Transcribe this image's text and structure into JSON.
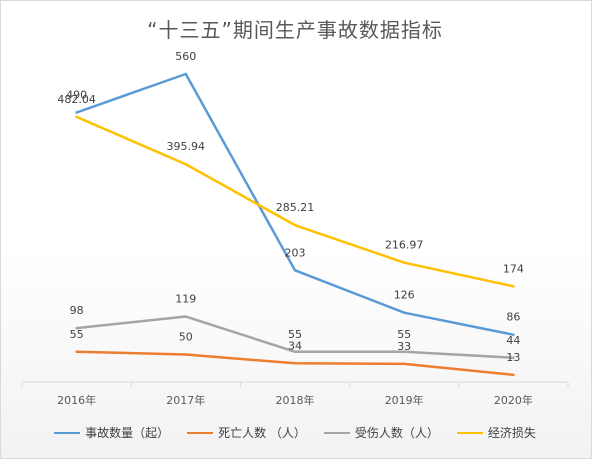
{
  "chart_data": {
    "type": "line",
    "title": "“十三五”期间生产事故数据指标",
    "categories": [
      "2016年",
      "2017年",
      "2018年",
      "2019年",
      "2020年"
    ],
    "ylim": [
      0,
      600
    ],
    "grid": false,
    "legend_position": "bottom",
    "series": [
      {
        "name": "事故数量（起）",
        "color": "#5b9bd5",
        "values": [
          490,
          560,
          203,
          126,
          86
        ]
      },
      {
        "name": "死亡人数 （人）",
        "color": "#ed7d31",
        "values": [
          55,
          50,
          34,
          33,
          13
        ]
      },
      {
        "name": "受伤人数（人）",
        "color": "#a5a5a5",
        "values": [
          98,
          119,
          55,
          55,
          44
        ]
      },
      {
        "name": "经济损失",
        "color": "#ffc000",
        "values": [
          482.04,
          395.94,
          285.21,
          216.97,
          174
        ]
      }
    ]
  }
}
